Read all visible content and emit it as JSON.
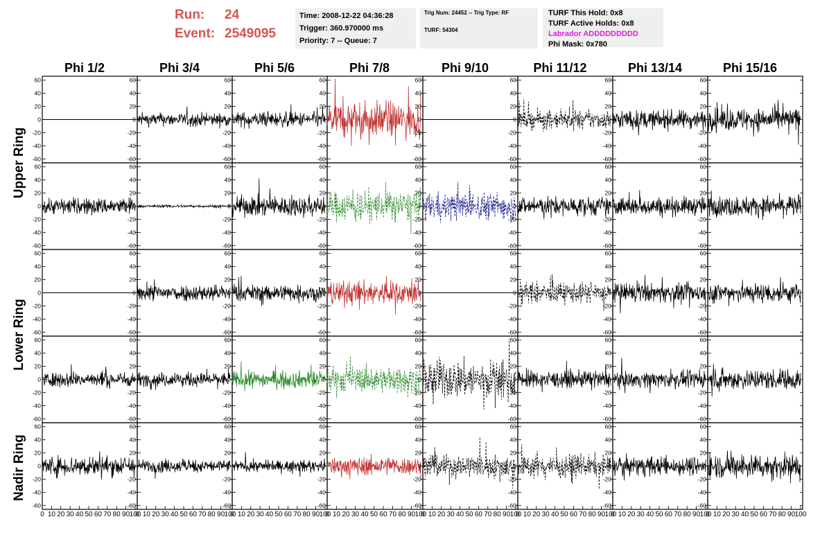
{
  "header": {
    "run_label": "Run:",
    "run_value": "24",
    "event_label": "Event:",
    "event_value": "2549095"
  },
  "info_box_1": {
    "time": "Time: 2008-12-22 04:36:28",
    "trigger": "Trigger: 360.970000 ms",
    "priority": "Priority: 7 -- Queue: 7"
  },
  "info_box_2": {
    "trig": "Trig Num: 24452 -- Trig Type: RF",
    "turf": "TURF: 54304"
  },
  "info_box_3": {
    "this_hold": "TURF This Hold: 0x8",
    "active_holds": "TURF Active Holds: 0x8",
    "labrador": "Labrador ADDDDDDDDD",
    "phi_mask": "Phi Mask: 0x780"
  },
  "columns": [
    "Phi 1/2",
    "Phi 3/4",
    "Phi 5/6",
    "Phi 7/8",
    "Phi 9/10",
    "Phi 11/12",
    "Phi 13/14",
    "Phi 15/16"
  ],
  "rings": [
    "Upper Ring",
    "Lower Ring",
    "Nadir Ring"
  ],
  "colors": {
    "black": "#000000",
    "red": "#c0302f",
    "green": "#2a8a2a",
    "blue": "#1b1b8f"
  },
  "chart_data": {
    "type": "line",
    "x_range": [
      0,
      100
    ],
    "y_range": [
      -65,
      65
    ],
    "x_ticks": [
      0,
      10,
      20,
      30,
      40,
      50,
      60,
      70,
      80,
      90,
      100
    ],
    "y_ticks": [
      60,
      40,
      20,
      0,
      -20,
      -40,
      -60
    ],
    "panel_rows": 5,
    "panel_cols": 8,
    "panels": [
      [
        {
          "style": "flat",
          "color": "black",
          "amp": 0
        },
        {
          "style": "solid",
          "color": "black",
          "amp": 14
        },
        {
          "style": "solid",
          "color": "black",
          "amp": 16
        },
        {
          "style": "solid",
          "color": "red",
          "amp": 38
        },
        {
          "style": "flat",
          "color": "black",
          "amp": 0
        },
        {
          "style": "dashed",
          "color": "black",
          "amp": 20
        },
        {
          "style": "solid",
          "color": "black",
          "amp": 20
        },
        {
          "style": "solid",
          "color": "black",
          "amp": 24
        }
      ],
      [
        {
          "style": "solid",
          "color": "black",
          "amp": 18
        },
        {
          "style": "solid",
          "color": "black",
          "amp": 3
        },
        {
          "style": "solid",
          "color": "black",
          "amp": 22
        },
        {
          "style": "dashed",
          "color": "green",
          "amp": 32
        },
        {
          "style": "dashed",
          "color": "blue",
          "amp": 30
        },
        {
          "style": "solid",
          "color": "black",
          "amp": 20
        },
        {
          "style": "solid",
          "color": "black",
          "amp": 20
        },
        {
          "style": "solid",
          "color": "black",
          "amp": 22
        }
      ],
      [
        {
          "style": "flat",
          "color": "black",
          "amp": 0
        },
        {
          "style": "solid",
          "color": "black",
          "amp": 18
        },
        {
          "style": "solid",
          "color": "black",
          "amp": 18
        },
        {
          "style": "solid",
          "color": "red",
          "amp": 26
        },
        {
          "style": "flat",
          "color": "black",
          "amp": 0
        },
        {
          "style": "dashed",
          "color": "black",
          "amp": 22
        },
        {
          "style": "solid",
          "color": "black",
          "amp": 20
        },
        {
          "style": "solid",
          "color": "black",
          "amp": 22
        }
      ],
      [
        {
          "style": "solid",
          "color": "black",
          "amp": 16
        },
        {
          "style": "solid",
          "color": "black",
          "amp": 15
        },
        {
          "style": "solid",
          "color": "green",
          "amp": 18
        },
        {
          "style": "dashed",
          "color": "green",
          "amp": 28
        },
        {
          "style": "dashed",
          "color": "black",
          "amp": 42
        },
        {
          "style": "solid",
          "color": "black",
          "amp": 18
        },
        {
          "style": "solid",
          "color": "black",
          "amp": 17
        },
        {
          "style": "solid",
          "color": "black",
          "amp": 22
        }
      ],
      [
        {
          "style": "solid",
          "color": "black",
          "amp": 22
        },
        {
          "style": "solid",
          "color": "black",
          "amp": 14
        },
        {
          "style": "solid",
          "color": "black",
          "amp": 12
        },
        {
          "style": "solid",
          "color": "red",
          "amp": 20
        },
        {
          "style": "dashed",
          "color": "black",
          "amp": 26
        },
        {
          "style": "dashed",
          "color": "black",
          "amp": 24
        },
        {
          "style": "solid",
          "color": "black",
          "amp": 20
        },
        {
          "style": "solid",
          "color": "black",
          "amp": 26
        }
      ]
    ]
  }
}
